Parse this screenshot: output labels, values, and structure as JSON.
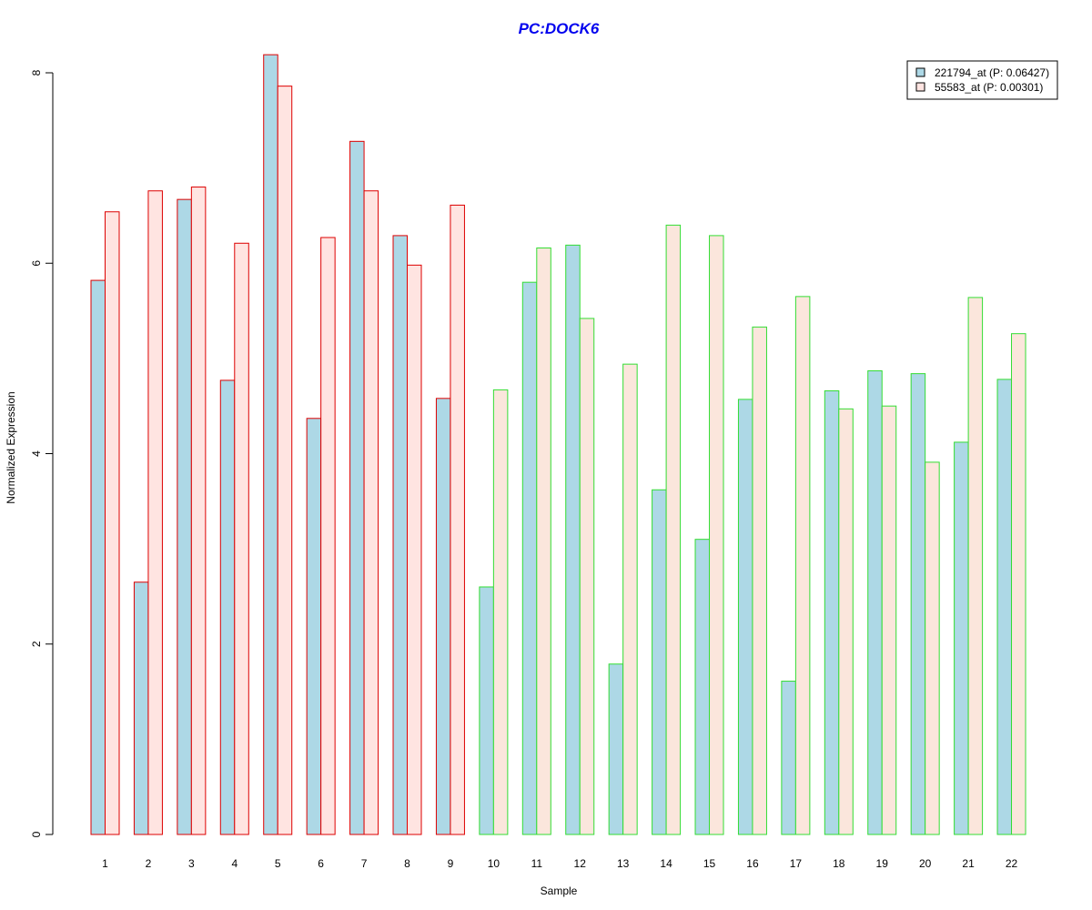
{
  "chart_data": {
    "type": "bar",
    "title": "PC:DOCK6",
    "title_color": "#0000ee",
    "xlabel": "Sample",
    "ylabel": "Normalized Expression",
    "ylim": [
      0,
      8
    ],
    "y_ticks": [
      0,
      2,
      4,
      6,
      8
    ],
    "categories": [
      "1",
      "2",
      "3",
      "4",
      "5",
      "6",
      "7",
      "8",
      "9",
      "10",
      "11",
      "12",
      "13",
      "14",
      "15",
      "16",
      "17",
      "18",
      "19",
      "20",
      "21",
      "22"
    ],
    "series": [
      {
        "name": "221794_at (P: 0.06427)",
        "fill": "#add8e6",
        "values": [
          5.82,
          2.65,
          6.67,
          4.77,
          8.19,
          4.37,
          7.28,
          6.29,
          4.58,
          2.6,
          5.8,
          6.19,
          1.79,
          3.62,
          3.1,
          4.57,
          1.61,
          4.66,
          4.87,
          4.84,
          4.12,
          4.78
        ]
      },
      {
        "name": "55583_at (P: 0.00301)",
        "fill_group1": "#ffe4e1",
        "fill_group2": "#fbe6dc",
        "values": [
          6.54,
          6.76,
          6.8,
          6.21,
          7.86,
          6.27,
          6.76,
          5.98,
          6.61,
          4.67,
          6.16,
          5.42,
          4.94,
          6.4,
          6.29,
          5.33,
          5.65,
          4.47,
          4.5,
          3.91,
          5.64,
          5.26
        ]
      }
    ],
    "group_border_colors": {
      "group1": "#dd0000",
      "group2": "#33dd33"
    },
    "group1_count": 9,
    "legend": {
      "position": "top-right",
      "entries": [
        {
          "label": "221794_at (P: 0.06427)",
          "color": "#add8e6"
        },
        {
          "label": "55583_at (P: 0.00301)",
          "color": "#ffe4e1"
        }
      ]
    },
    "grid": false
  }
}
